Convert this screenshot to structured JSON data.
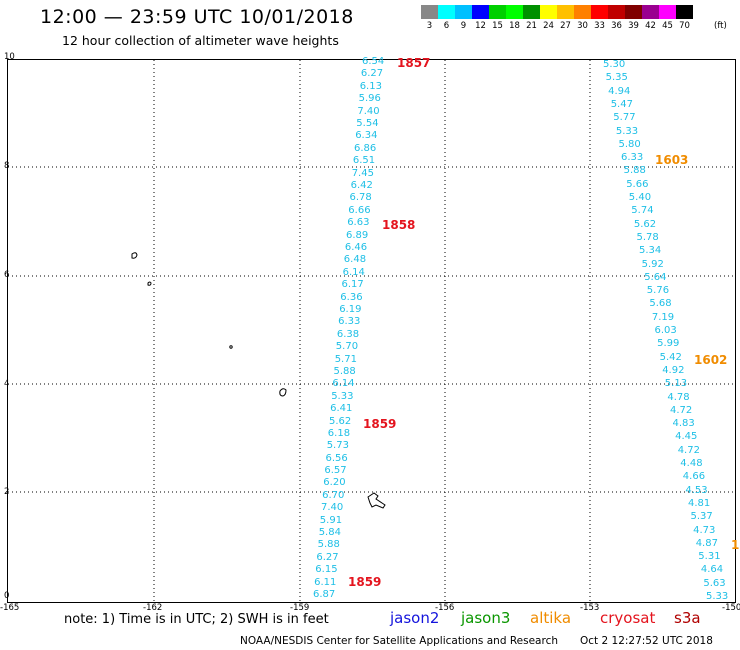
{
  "header": {
    "title": "12:00 — 23:59 UTC 10/01/2018",
    "subtitle": "12 hour collection of altimeter wave heights"
  },
  "color_scale": {
    "colors": [
      "#888888",
      "#00ffff",
      "#00c0ff",
      "#0000ff",
      "#00d000",
      "#00ff00",
      "#009000",
      "#ffff00",
      "#ffc000",
      "#ff8000",
      "#ff0000",
      "#c00000",
      "#800000",
      "#9a0090",
      "#ff00ff",
      "#000000"
    ],
    "labels": [
      "3",
      "6",
      "9",
      "12",
      "15",
      "18",
      "21",
      "24",
      "27",
      "30",
      "33",
      "36",
      "39",
      "42",
      "45",
      "70"
    ],
    "unit": "(ft)"
  },
  "axes": {
    "y_ticks": [
      "10",
      "8",
      "6",
      "4",
      "2",
      "0"
    ],
    "x_ticks": [
      "-165",
      "-162",
      "-159",
      "-156",
      "-153",
      "-150"
    ]
  },
  "tracks": {
    "west": {
      "color": "#1ebfe6",
      "values": [
        "6.54",
        "6.27",
        "6.13",
        "5.96",
        "7.40",
        "5.54",
        "6.34",
        "6.86",
        "6.51",
        "7.45",
        "6.42",
        "6.78",
        "6.66",
        "6.63",
        "6.89",
        "6.46",
        "6.48",
        "6.14",
        "6.17",
        "6.36",
        "6.19",
        "6.33",
        "6.38",
        "5.70",
        "5.71",
        "5.88",
        "6.14",
        "5.33",
        "6.41",
        "5.62",
        "6.18",
        "5.73",
        "6.56",
        "6.57",
        "6.20",
        "6.70",
        "7.40",
        "5.91",
        "5.84",
        "5.88",
        "6.27",
        "6.15",
        "6.11",
        "6.87"
      ]
    },
    "east": {
      "color": "#1ebfe6",
      "values": [
        "5.30",
        "5.35",
        "4.94",
        "5.47",
        "5.77",
        "5.33",
        "5.80",
        "6.33",
        "5.88",
        "5.66",
        "5.40",
        "5.74",
        "5.62",
        "5.78",
        "5.34",
        "5.92",
        "5.64",
        "5.76",
        "5.68",
        "7.19",
        "6.03",
        "5.99",
        "5.42",
        "4.92",
        "5.13",
        "4.78",
        "4.72",
        "4.83",
        "4.45",
        "4.72",
        "4.48",
        "4.66",
        "4.53",
        "4.81",
        "5.37",
        "4.73",
        "4.87",
        "5.31",
        "4.64",
        "5.63",
        "5.33"
      ]
    }
  },
  "time_labels": {
    "west": [
      "1857",
      "1858",
      "1859",
      "1859"
    ],
    "east": [
      "1603",
      "1602",
      "1"
    ]
  },
  "footer": {
    "note": "note: 1) Time is in UTC; 2) SWH is in feet",
    "satellites": [
      {
        "name": "jason2",
        "color": "#1414dc"
      },
      {
        "name": "jason3",
        "color": "#0a9600"
      },
      {
        "name": "altika",
        "color": "#f08c00"
      },
      {
        "name": "cryosat",
        "color": "#e4141e"
      },
      {
        "name": "s3a",
        "color": "#b00000"
      }
    ],
    "credit": "NOAA/NESDIS Center for Satellite Applications and Research",
    "timestamp": "Oct  2 12:27:52 UTC 2018"
  }
}
